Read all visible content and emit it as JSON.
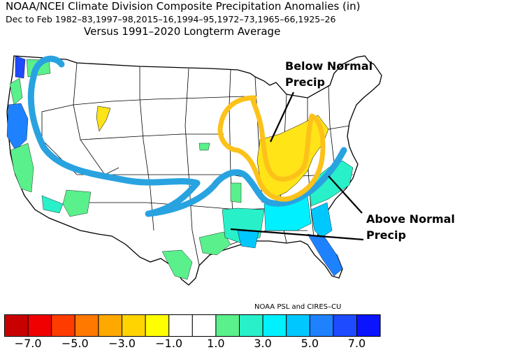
{
  "title": {
    "line1": "NOAA/NCEI Climate Division Composite Precipitation Anomalies (in)",
    "line2": "Dec to Feb  1982–83,1997–98,2015–16,1994–95,1972–73,1965–66,1925–26",
    "line3": "Versus 1991–2020 Longterm Average"
  },
  "annotations": {
    "below_line1": "Below Normal",
    "below_line2": "Precip",
    "above_line1": "Above Normal",
    "above_line2": "Precip"
  },
  "credit": "NOAA PSL and CIRES–CU",
  "legend": {
    "colors": [
      "#c80000",
      "#f00000",
      "#ff3c00",
      "#ff7800",
      "#ffa800",
      "#ffd400",
      "#ffff00",
      "#ffffff",
      "#ffffff",
      "#5af08c",
      "#28f0c8",
      "#00f0ff",
      "#00c8ff",
      "#1e82ff",
      "#1e4bff",
      "#0a14ff"
    ],
    "tick_labels": [
      "−7.0",
      "−5.0",
      "−3.0",
      "−1.0",
      "1.0",
      "3.0",
      "5.0",
      "7.0"
    ]
  },
  "colors": {
    "jet_stream": "#29a3e0",
    "drought_outline": "#fcc21a",
    "dry_fill": "#ffe418"
  }
}
